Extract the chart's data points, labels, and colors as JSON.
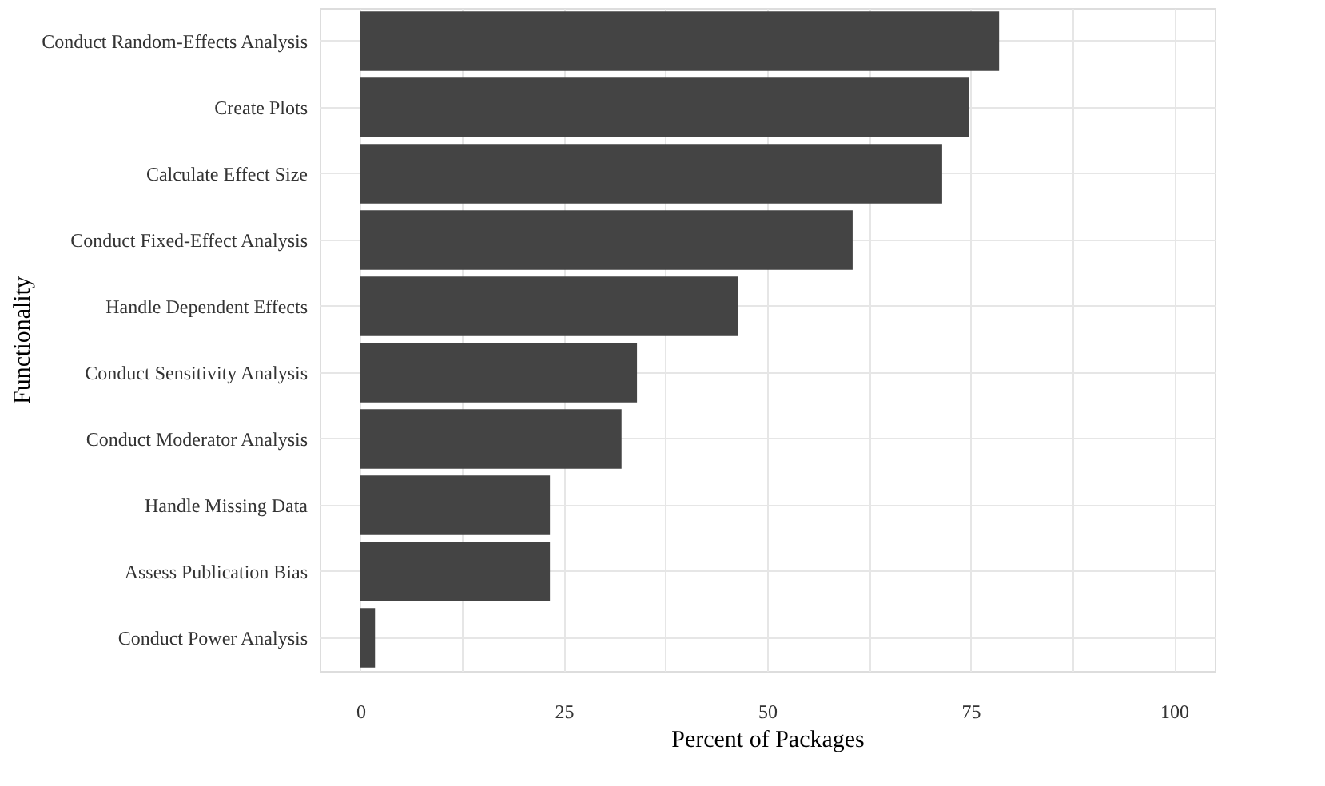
{
  "chart_data": {
    "type": "bar",
    "orientation": "horizontal",
    "xlabel": "Percent of Packages",
    "ylabel": "Functionality",
    "categories": [
      "Conduct Random-Effects Analysis",
      "Create Plots",
      "Calculate Effect Size",
      "Conduct Fixed-Effect Analysis",
      "Handle Dependent Effects",
      "Conduct Sensitivity Analysis",
      "Conduct Moderator Analysis",
      "Handle Missing Data",
      "Assess Publication Bias",
      "Conduct Power Analysis"
    ],
    "values": [
      78.5,
      74.8,
      71.5,
      60.5,
      46.4,
      34.0,
      32.1,
      23.3,
      23.3,
      1.8
    ],
    "color": "#444444",
    "xlim": [
      -5,
      105
    ],
    "xticks": [
      0,
      {
        "value": 12.5,
        "label": null
      },
      25,
      {
        "value": 37.5,
        "label": null
      },
      50,
      {
        "value": 62.5,
        "label": null
      },
      75,
      {
        "value": 87.5,
        "label": null
      },
      100
    ],
    "grid": true
  }
}
